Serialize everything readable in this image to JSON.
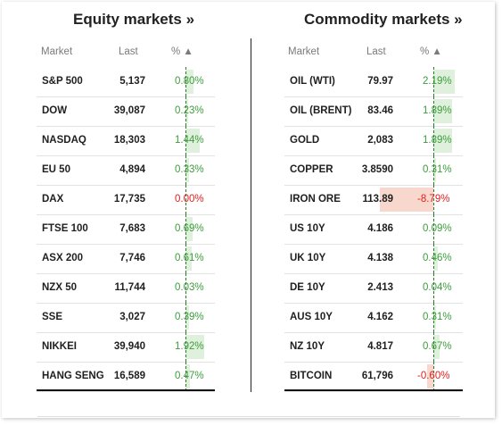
{
  "colors": {
    "positive_text": "#3d9c3d",
    "negative_text": "#e02020",
    "positive_bar": "#dff1dc",
    "negative_bar": "#f8d8cd"
  },
  "equity": {
    "title": "Equity markets »",
    "headers": {
      "market": "Market",
      "last": "Last",
      "pct": "% ▲"
    },
    "rows": [
      {
        "name": "S&P 500",
        "last": "5,137",
        "pct": "0.80%",
        "value": 0.8
      },
      {
        "name": "DOW",
        "last": "39,087",
        "pct": "0.23%",
        "value": 0.23
      },
      {
        "name": "NASDAQ",
        "last": "18,303",
        "pct": "1.44%",
        "value": 1.44
      },
      {
        "name": "EU 50",
        "last": "4,894",
        "pct": "0.33%",
        "value": 0.33
      },
      {
        "name": "DAX",
        "last": "17,735",
        "pct": "0.00%",
        "value": 0.0
      },
      {
        "name": "FTSE 100",
        "last": "7,683",
        "pct": "0.69%",
        "value": 0.69
      },
      {
        "name": "ASX 200",
        "last": "7,746",
        "pct": "0.61%",
        "value": 0.61
      },
      {
        "name": "NZX 50",
        "last": "11,744",
        "pct": "0.03%",
        "value": 0.03
      },
      {
        "name": "SSE",
        "last": "3,027",
        "pct": "0.39%",
        "value": 0.39
      },
      {
        "name": "NIKKEI",
        "last": "39,940",
        "pct": "1.92%",
        "value": 1.92
      },
      {
        "name": "HANG SENG",
        "last": "16,589",
        "pct": "0.47%",
        "value": 0.47
      }
    ]
  },
  "commodity": {
    "title": "Commodity markets »",
    "headers": {
      "market": "Market",
      "last": "Last",
      "pct": "% ▲"
    },
    "rows": [
      {
        "name": "OIL (WTI)",
        "last": "79.97",
        "pct": "2.19%",
        "value": 2.19
      },
      {
        "name": "OIL (BRENT)",
        "last": "83.46",
        "pct": "1.89%",
        "value": 1.89
      },
      {
        "name": "GOLD",
        "last": "2,083",
        "pct": "1.89%",
        "value": 1.89
      },
      {
        "name": "COPPER",
        "last": "3.8590",
        "pct": "0.31%",
        "value": 0.31
      },
      {
        "name": "IRON ORE",
        "last": "113.89",
        "pct": "-8.79%",
        "value": -8.79
      },
      {
        "name": "US 10Y",
        "last": "4.186",
        "pct": "0.09%",
        "value": 0.09
      },
      {
        "name": "UK 10Y",
        "last": "4.138",
        "pct": "0.46%",
        "value": 0.46
      },
      {
        "name": "DE 10Y",
        "last": "2.413",
        "pct": "0.04%",
        "value": 0.04
      },
      {
        "name": "AUS 10Y",
        "last": "4.162",
        "pct": "0.31%",
        "value": 0.31
      },
      {
        "name": "NZ 10Y",
        "last": "4.817",
        "pct": "0.67%",
        "value": 0.67
      },
      {
        "name": "BITCOIN",
        "last": "61,796",
        "pct": "-0.60%",
        "value": -0.6
      }
    ]
  }
}
